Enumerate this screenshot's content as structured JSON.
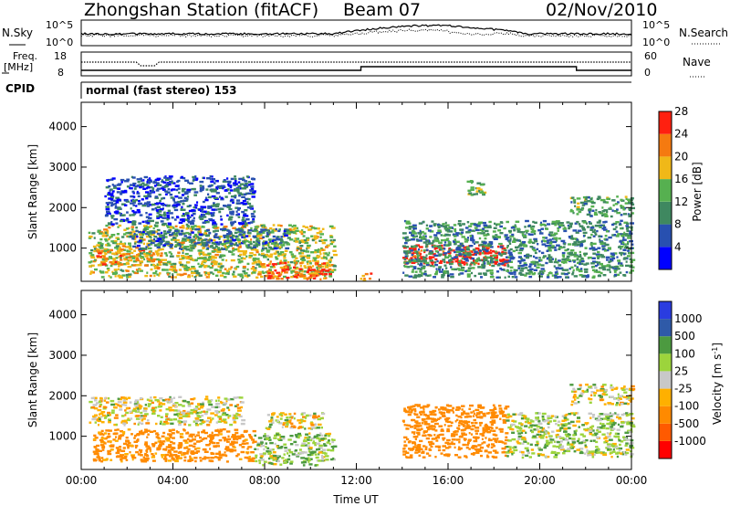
{
  "header": {
    "station": "Zhongshan Station (fitACF)",
    "beam": "Beam 07",
    "date": "02/Nov/2010"
  },
  "top_panels": {
    "nsky_label": "N.Sky",
    "nsearch_label": "N.Search",
    "noise_ticks": [
      "10^5",
      "10^0"
    ],
    "freq_label_1": "Freq.",
    "freq_label_2": "[MHz]",
    "freq_ticks": [
      "18",
      "8"
    ],
    "nave_label": "Nave",
    "nave_ticks": [
      "60",
      "0"
    ],
    "cpid_label": "CPID",
    "cpid_text": "normal (fast stereo) 153"
  },
  "colors": {
    "power_scale": [
      "#0000ff",
      "#2850b0",
      "#3f8860",
      "#56b050",
      "#f0b818",
      "#f57a10",
      "#ff2010"
    ],
    "velocity_scale": [
      "#ff0000",
      "#ff5a00",
      "#ff8a00",
      "#ffb000",
      "#c8c8c8",
      "#9cd43c",
      "#4c9a40",
      "#2f5aa8",
      "#2a3ce0"
    ]
  },
  "chart_data": [
    {
      "type": "heatmap",
      "name": "power",
      "xlabel": "Time UT",
      "ylabel": "Slant Range [km]",
      "x_range_hours": [
        0,
        24
      ],
      "x_ticks": [
        "00:00",
        "04:00",
        "08:00",
        "12:00",
        "16:00",
        "20:00",
        "00:00"
      ],
      "y_range_km": [
        180,
        4600
      ],
      "y_ticks": [
        1000,
        2000,
        3000,
        4000
      ],
      "colorbar": {
        "label": "Power [dB]",
        "ticks": [
          4,
          8,
          12,
          16,
          20,
          24,
          28
        ],
        "range": [
          0,
          30
        ]
      },
      "echo_regions": [
        {
          "t0": 0.3,
          "t1": 11.0,
          "r0": 300,
          "r1": 1600,
          "level": 16
        },
        {
          "t0": 0.5,
          "t1": 3.5,
          "r0": 600,
          "r1": 1000,
          "level": 20
        },
        {
          "t0": 2.0,
          "t1": 9.0,
          "r0": 1000,
          "r1": 1500,
          "level": 8
        },
        {
          "t0": 1.0,
          "t1": 7.5,
          "r0": 1600,
          "r1": 2800,
          "level": 6
        },
        {
          "t0": 8.0,
          "t1": 10.8,
          "r0": 250,
          "r1": 700,
          "level": 24
        },
        {
          "t0": 12.0,
          "t1": 12.6,
          "r0": 220,
          "r1": 400,
          "level": 20
        },
        {
          "t0": 14.0,
          "t1": 18.5,
          "r0": 600,
          "r1": 1100,
          "level": 28
        },
        {
          "t0": 14.0,
          "t1": 24.0,
          "r0": 300,
          "r1": 1700,
          "level": 10
        },
        {
          "t0": 16.8,
          "t1": 17.5,
          "r0": 2300,
          "r1": 2700,
          "level": 14
        },
        {
          "t0": 21.3,
          "t1": 24.0,
          "r0": 1800,
          "r1": 2300,
          "level": 12
        }
      ]
    },
    {
      "type": "heatmap",
      "name": "velocity",
      "xlabel": "Time UT",
      "ylabel": "Slant Range [km]",
      "x_range_hours": [
        0,
        24
      ],
      "x_ticks": [
        "00:00",
        "04:00",
        "08:00",
        "12:00",
        "16:00",
        "20:00",
        "00:00"
      ],
      "y_range_km": [
        180,
        4600
      ],
      "y_ticks": [
        1000,
        2000,
        3000,
        4000
      ],
      "colorbar": {
        "label": "Velocity [m s^-1]",
        "ticks": [
          1000,
          500,
          100,
          25,
          -25,
          -100,
          -500,
          -1000
        ]
      },
      "echo_regions": [
        {
          "t0": 0.3,
          "t1": 7.0,
          "r0": 1300,
          "r1": 2000,
          "level": 0
        },
        {
          "t0": 0.5,
          "t1": 7.5,
          "r0": 400,
          "r1": 1200,
          "level": -200
        },
        {
          "t0": 7.5,
          "t1": 11.0,
          "r0": 300,
          "r1": 1100,
          "level": 80
        },
        {
          "t0": 8.0,
          "t1": 10.5,
          "r0": 1200,
          "r1": 1600,
          "level": 0
        },
        {
          "t0": 14.0,
          "t1": 18.5,
          "r0": 500,
          "r1": 1800,
          "level": -300
        },
        {
          "t0": 18.5,
          "t1": 24.0,
          "r0": 500,
          "r1": 1600,
          "level": 60
        },
        {
          "t0": 21.3,
          "t1": 24.0,
          "r0": 1800,
          "r1": 2300,
          "level": 0
        }
      ]
    }
  ]
}
